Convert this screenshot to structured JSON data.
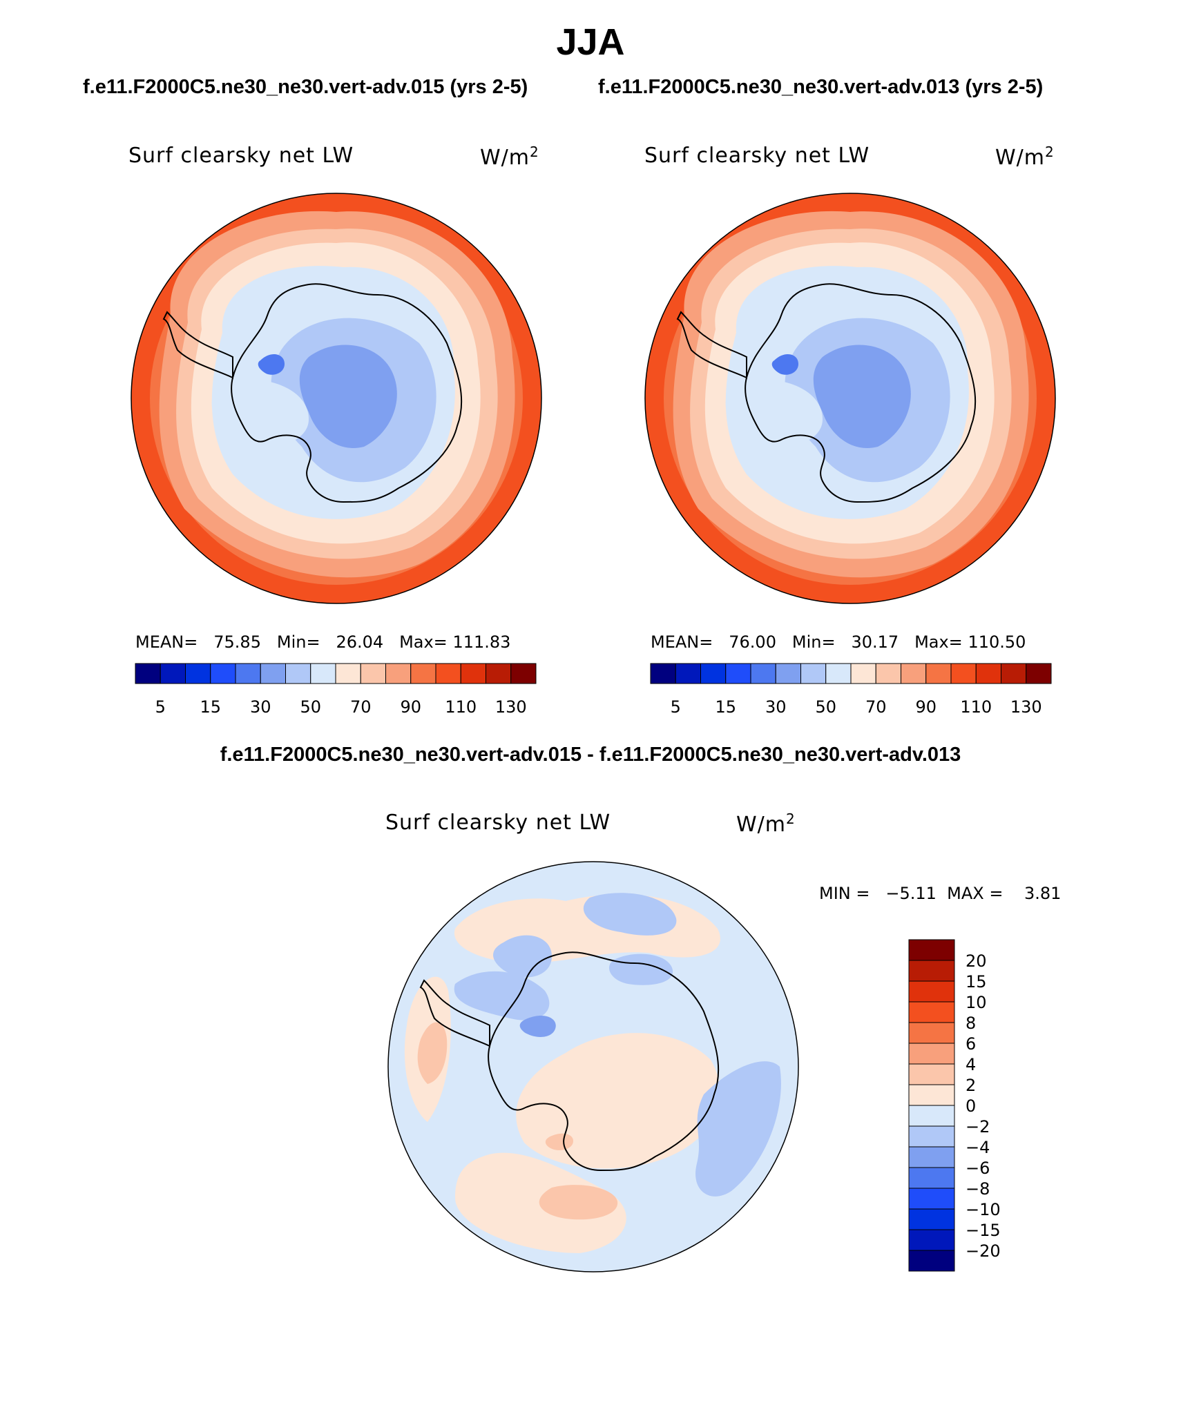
{
  "figure": {
    "title": "JJA",
    "case1_title": "f.e11.F2000C5.ne30_ne30.vert-adv.015 (yrs 2-5)",
    "case2_title": "f.e11.F2000C5.ne30_ne30.vert-adv.013 (yrs 2-5)",
    "diff_title": "f.e11.F2000C5.ne30_ne30.vert-adv.015 - f.e11.F2000C5.ne30_ne30.vert-adv.013"
  },
  "panels": {
    "case1": {
      "variable": "Surf clearsky net LW",
      "units": "W/m",
      "units_exp": "2",
      "mean_label": "MEAN=",
      "mean": "75.85",
      "min_label": "Min=",
      "min": "26.04",
      "max_label": "Max=",
      "max": "111.83"
    },
    "case2": {
      "variable": "Surf clearsky net LW",
      "units": "W/m",
      "units_exp": "2",
      "mean_label": "MEAN=",
      "mean": "76.00",
      "min_label": "Min=",
      "min": "30.17",
      "max_label": "Max=",
      "max": "110.50"
    },
    "diff": {
      "variable": "Surf clearsky net LW",
      "units": "W/m",
      "units_exp": "2",
      "stats": "MIN =   −5.11  MAX =    3.81"
    }
  },
  "colorbars": {
    "case": {
      "colors": [
        "#00007f",
        "#0018bb",
        "#0033e0",
        "#1f4dfa",
        "#4d78f0",
        "#7fa0f0",
        "#b0c8f7",
        "#d8e8fa",
        "#fde6d6",
        "#fbc6ab",
        "#f8a07c",
        "#f57444",
        "#f3501f",
        "#e0320c",
        "#b81c05",
        "#7d0000"
      ],
      "labels": [
        "5",
        "15",
        "30",
        "50",
        "70",
        "90",
        "110",
        "130"
      ]
    },
    "diff": {
      "colors": [
        "#00007f",
        "#0018bb",
        "#0033e0",
        "#1f4dfa",
        "#4d78f0",
        "#7fa0f0",
        "#b0c8f7",
        "#d8e8fa",
        "#fde6d6",
        "#fbc6ab",
        "#f8a07c",
        "#f57444",
        "#f3501f",
        "#e0320c",
        "#b81c05",
        "#7d0000"
      ],
      "labels": [
        "−20",
        "−15",
        "−10",
        "−8",
        "−6",
        "−4",
        "−2",
        "0",
        "2",
        "4",
        "6",
        "8",
        "10",
        "15",
        "20"
      ]
    }
  }
}
